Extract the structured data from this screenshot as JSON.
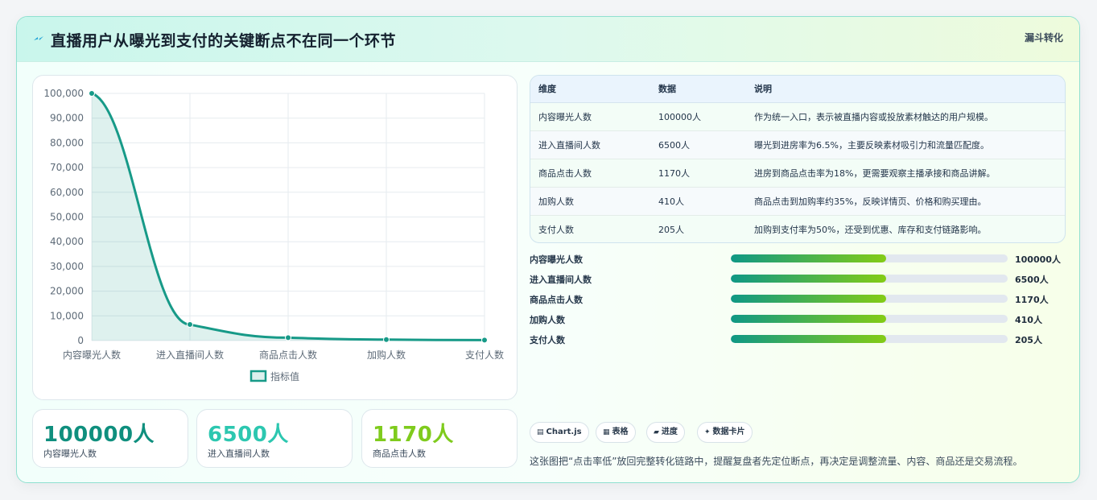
{
  "header": {
    "title": "直播用户从曝光到支付的关键断点不在同一个环节",
    "tag": "漏斗转化",
    "title_icon": "lightning-icon"
  },
  "chart_data": {
    "type": "line",
    "categories": [
      "内容曝光人数",
      "进入直播间人数",
      "商品点击人数",
      "加购人数",
      "支付人数"
    ],
    "series": [
      {
        "name": "指标值",
        "values": [
          100000,
          6500,
          1170,
          410,
          205
        ]
      }
    ],
    "ylim": [
      0,
      100000
    ],
    "yticks": [
      "100,000",
      "90,000",
      "80,000",
      "70,000",
      "60,000",
      "50,000",
      "40,000",
      "30,000",
      "20,000",
      "10,000",
      "0"
    ],
    "fill": true,
    "grid": true,
    "legend": "bottom",
    "color": "#179a88"
  },
  "stats": [
    {
      "value": "100000人",
      "label": "内容曝光人数",
      "color": "#0f8f7e"
    },
    {
      "value": "6500人",
      "label": "进入直播间人数",
      "color": "#2cc7b0"
    },
    {
      "value": "1170人",
      "label": "商品点击人数",
      "color": "#7fcb1d"
    }
  ],
  "table": {
    "headers": [
      "维度",
      "数据",
      "说明"
    ],
    "rows": [
      [
        "内容曝光人数",
        "100000人",
        "作为统一入口，表示被直播内容或投放素材触达的用户规模。"
      ],
      [
        "进入直播间人数",
        "6500人",
        "曝光到进房率为6.5%，主要反映素材吸引力和流量匹配度。"
      ],
      [
        "商品点击人数",
        "1170人",
        "进房到商品点击率为18%，更需要观察主播承接和商品讲解。"
      ],
      [
        "加购人数",
        "410人",
        "商品点击到加购率约35%，反映详情页、价格和购买理由。"
      ],
      [
        "支付人数",
        "205人",
        "加购到支付率为50%，还受到优惠、库存和支付链路影响。"
      ]
    ]
  },
  "progress": [
    {
      "label": "内容曝光人数",
      "value": "100000人",
      "fill": 0.56
    },
    {
      "label": "进入直播间人数",
      "value": "6500人",
      "fill": 0.56
    },
    {
      "label": "商品点击人数",
      "value": "1170人",
      "fill": 0.56
    },
    {
      "label": "加购人数",
      "value": "410人",
      "fill": 0.56
    },
    {
      "label": "支付人数",
      "value": "205人",
      "fill": 0.56
    }
  ],
  "chips": [
    {
      "icon": "▤",
      "label": "Chart.js"
    },
    {
      "icon": "▦",
      "label": "表格"
    },
    {
      "icon": "▰",
      "label": "进度"
    },
    {
      "icon": "✦",
      "label": "数据卡片"
    }
  ],
  "note": "这张图把“点击率低”放回完整转化链路中，提醒复盘者先定位断点，再决定是调整流量、内容、商品还是交易流程。"
}
